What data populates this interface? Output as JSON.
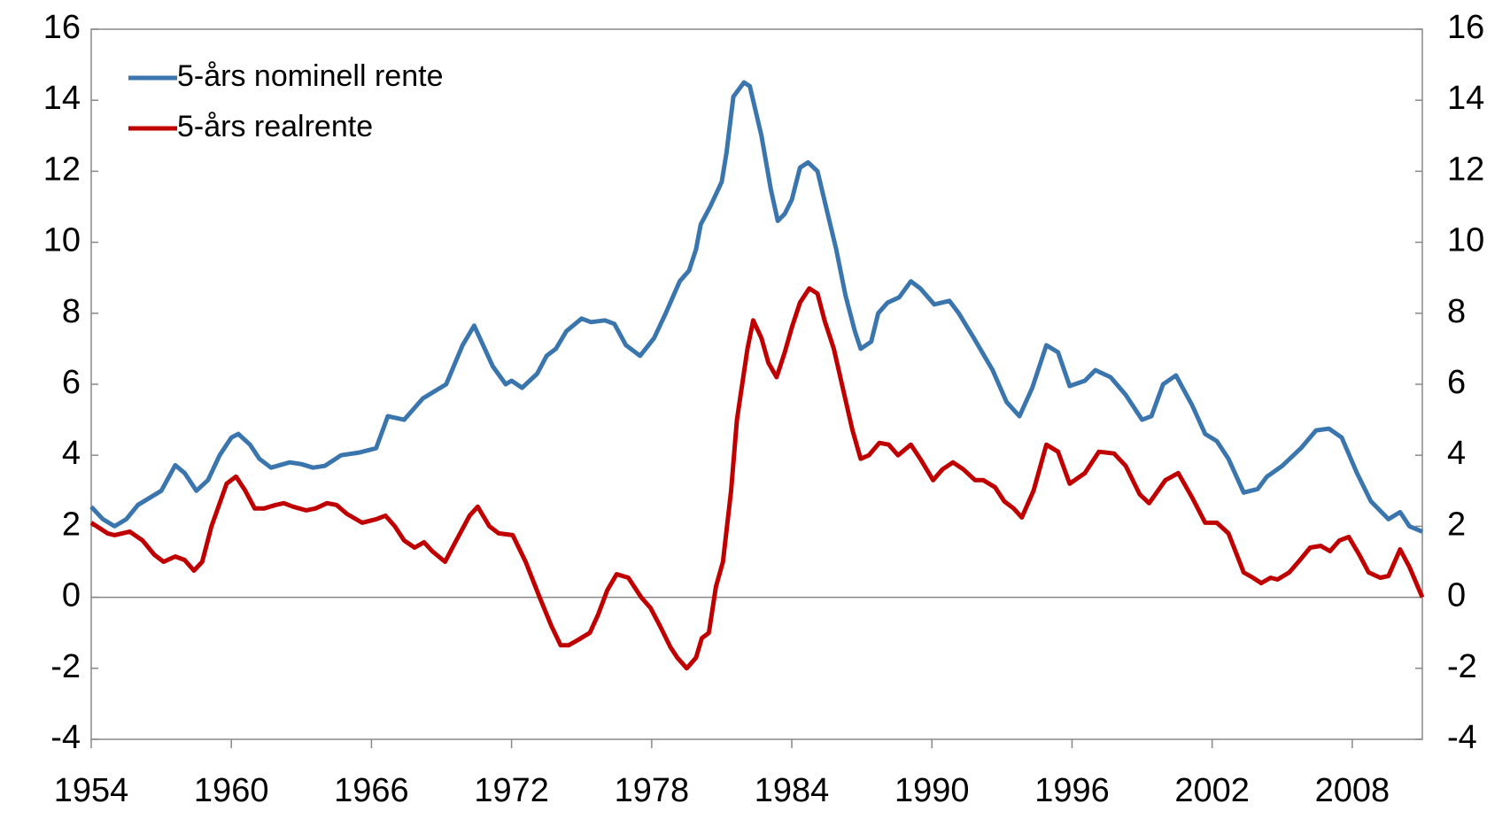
{
  "chart_data": {
    "type": "line",
    "xlim": [
      1954,
      2011
    ],
    "xticks": [
      1954,
      1960,
      1966,
      1972,
      1978,
      1984,
      1990,
      1996,
      2002,
      2008
    ],
    "ylim": [
      -4,
      16
    ],
    "yticks": [
      -4,
      -2,
      0,
      2,
      4,
      6,
      8,
      10,
      12,
      14,
      16
    ],
    "legend": "upper left",
    "series": [
      {
        "name": "5-års nominell rente",
        "color": "#3a76ad",
        "x": [
          1954,
          1954.5,
          1955,
          1955.5,
          1956,
          1956.5,
          1957,
          1957.6,
          1958,
          1958.5,
          1959,
          1959.5,
          1960,
          1960.3,
          1960.8,
          1961.2,
          1961.7,
          1962.5,
          1963,
          1963.5,
          1964,
          1964.7,
          1965.5,
          1966.2,
          1966.7,
          1967.4,
          1968.2,
          1969.2,
          1969.9,
          1970.4,
          1971.2,
          1971.75,
          1972.0,
          1972.45,
          1973.1,
          1973.5,
          1973.9,
          1974.35,
          1975.0,
          1975.4,
          1976.0,
          1976.4,
          1976.9,
          1977.5,
          1978.1,
          1978.6,
          1979.2,
          1979.6,
          1979.9,
          1980.1,
          1980.5,
          1981.0,
          1981.2,
          1981.5,
          1981.95,
          1982.2,
          1982.7,
          1983.1,
          1983.4,
          1983.7,
          1984.0,
          1984.35,
          1984.7,
          1985.1,
          1985.5,
          1985.9,
          1986.3,
          1986.7,
          1986.95,
          1987.4,
          1987.7,
          1988.1,
          1988.6,
          1989.1,
          1989.5,
          1990.1,
          1990.75,
          1991.15,
          1991.8,
          1992.6,
          1993.2,
          1993.75,
          1994.3,
          1994.9,
          1995.4,
          1995.9,
          1996.55,
          1997.0,
          1997.65,
          1998.3,
          1999.0,
          1999.4,
          1999.9,
          2000.45,
          2001.15,
          2001.7,
          2002.2,
          2002.7,
          2003.35,
          2003.95,
          2004.35,
          2005.0,
          2005.8,
          2006.45,
          2007.0,
          2007.55,
          2008.2,
          2008.8,
          2009.55,
          2010.05,
          2010.45,
          2011
        ],
        "values": [
          2.55,
          2.2,
          2.0,
          2.2,
          2.6,
          2.8,
          3.0,
          3.72,
          3.5,
          3.0,
          3.3,
          4.0,
          4.5,
          4.6,
          4.3,
          3.9,
          3.65,
          3.8,
          3.75,
          3.65,
          3.7,
          4.0,
          4.08,
          4.2,
          5.1,
          5.0,
          5.6,
          6.0,
          7.1,
          7.65,
          6.5,
          6.0,
          6.1,
          5.9,
          6.3,
          6.8,
          7.0,
          7.5,
          7.85,
          7.75,
          7.8,
          7.7,
          7.1,
          6.8,
          7.3,
          8.0,
          8.9,
          9.2,
          9.8,
          10.5,
          11.0,
          11.7,
          12.5,
          14.1,
          14.5,
          14.4,
          13.0,
          11.5,
          10.6,
          10.8,
          11.2,
          12.1,
          12.25,
          12.0,
          10.9,
          9.8,
          8.5,
          7.5,
          7.0,
          7.2,
          8.0,
          8.3,
          8.45,
          8.9,
          8.7,
          8.25,
          8.35,
          8.0,
          7.3,
          6.4,
          5.5,
          5.1,
          5.9,
          7.1,
          6.9,
          5.95,
          6.1,
          6.4,
          6.2,
          5.7,
          5.0,
          5.1,
          6.0,
          6.25,
          5.4,
          4.6,
          4.4,
          3.9,
          2.95,
          3.05,
          3.4,
          3.7,
          4.2,
          4.7,
          4.75,
          4.5,
          3.5,
          2.7,
          2.2,
          2.4,
          2.0,
          1.85
        ]
      },
      {
        "name": "5-års realrente",
        "color": "#c00000",
        "x": [
          1954,
          1954.7,
          1955.0,
          1955.65,
          1956.2,
          1956.7,
          1957.1,
          1957.6,
          1958.0,
          1958.4,
          1958.75,
          1959.15,
          1959.8,
          1960.2,
          1960.6,
          1961.0,
          1961.4,
          1961.9,
          1962.25,
          1962.65,
          1963.2,
          1963.6,
          1964.1,
          1964.5,
          1964.95,
          1965.6,
          1966.2,
          1966.6,
          1967.0,
          1967.4,
          1967.85,
          1968.25,
          1968.6,
          1969.15,
          1969.55,
          1970.2,
          1970.55,
          1971.05,
          1971.45,
          1972.05,
          1972.6,
          1973.2,
          1973.7,
          1974.1,
          1974.45,
          1974.85,
          1975.35,
          1975.7,
          1976.1,
          1976.5,
          1977.0,
          1977.55,
          1977.95,
          1978.35,
          1978.8,
          1979.1,
          1979.5,
          1979.9,
          1980.15,
          1980.45,
          1980.75,
          1981.05,
          1981.4,
          1981.65,
          1982.1,
          1982.35,
          1982.7,
          1983.0,
          1983.35,
          1983.7,
          1984.0,
          1984.35,
          1984.75,
          1985.1,
          1985.4,
          1985.8,
          1986.25,
          1986.6,
          1986.95,
          1987.3,
          1987.75,
          1988.15,
          1988.55,
          1989.1,
          1989.5,
          1990.05,
          1990.45,
          1990.9,
          1991.35,
          1991.85,
          1992.2,
          1992.7,
          1993.1,
          1993.5,
          1993.85,
          1994.35,
          1994.9,
          1995.4,
          1995.9,
          1996.55,
          1997.15,
          1997.8,
          1998.3,
          1998.9,
          1999.3,
          2000.0,
          2000.55,
          2001.15,
          2001.7,
          2002.2,
          2002.7,
          2003.35,
          2003.75,
          2004.1,
          2004.5,
          2004.8,
          2005.3,
          2005.7,
          2006.2,
          2006.65,
          2007.05,
          2007.45,
          2007.85,
          2008.3,
          2008.7,
          2009.2,
          2009.55,
          2010.05,
          2010.45,
          2011
        ],
        "values": [
          2.1,
          1.8,
          1.75,
          1.85,
          1.6,
          1.2,
          1.0,
          1.15,
          1.05,
          0.75,
          1.0,
          2.0,
          3.2,
          3.4,
          3.0,
          2.5,
          2.5,
          2.6,
          2.65,
          2.55,
          2.45,
          2.5,
          2.65,
          2.6,
          2.35,
          2.1,
          2.2,
          2.3,
          2.0,
          1.6,
          1.4,
          1.55,
          1.3,
          1.0,
          1.5,
          2.3,
          2.55,
          2.0,
          1.8,
          1.75,
          1.0,
          0.0,
          -0.8,
          -1.35,
          -1.35,
          -1.2,
          -1.0,
          -0.5,
          0.2,
          0.65,
          0.55,
          0.0,
          -0.3,
          -0.8,
          -1.4,
          -1.7,
          -2.0,
          -1.7,
          -1.15,
          -1.0,
          0.3,
          1.0,
          3.0,
          5.0,
          7.0,
          7.8,
          7.3,
          6.6,
          6.2,
          6.9,
          7.6,
          8.3,
          8.7,
          8.55,
          7.8,
          7.0,
          5.7,
          4.7,
          3.9,
          4.0,
          4.35,
          4.3,
          4.0,
          4.3,
          3.9,
          3.3,
          3.6,
          3.8,
          3.6,
          3.3,
          3.3,
          3.1,
          2.7,
          2.5,
          2.25,
          3.0,
          4.3,
          4.1,
          3.2,
          3.5,
          4.1,
          4.05,
          3.7,
          2.9,
          2.65,
          3.3,
          3.5,
          2.8,
          2.1,
          2.1,
          1.8,
          0.7,
          0.55,
          0.4,
          0.55,
          0.5,
          0.7,
          1.0,
          1.4,
          1.45,
          1.3,
          1.6,
          1.7,
          1.2,
          0.7,
          0.55,
          0.6,
          1.35,
          0.85,
          0.0
        ]
      }
    ]
  }
}
